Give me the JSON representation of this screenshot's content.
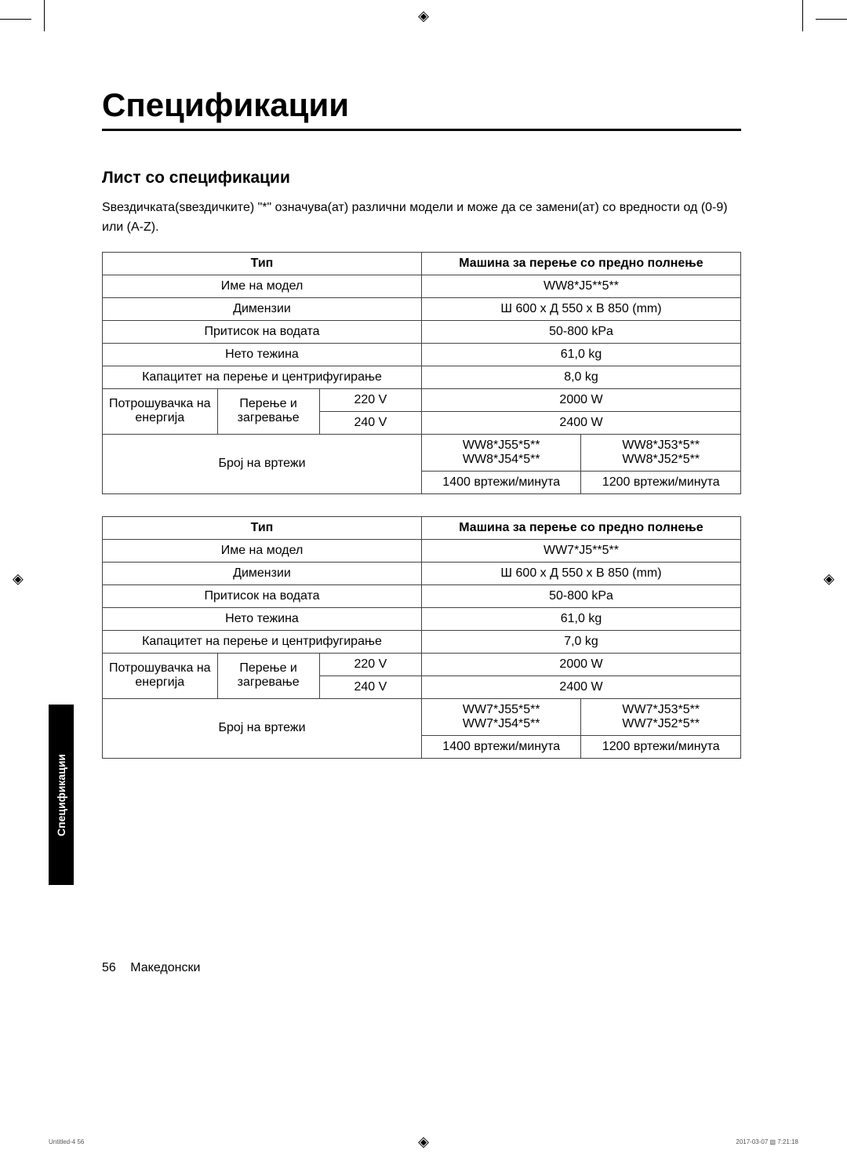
{
  "title": "Спецификации",
  "section_heading": "Лист со спецификации",
  "intro": "Ѕвездичката(ѕвездичките) \"*\" означува(ат) различни модели и може да се замени(ат) со вредности од (0-9) или (А-Z).",
  "labels": {
    "type": "Тип",
    "machine": "Машина за перење со предно полнење",
    "model_name": "Име на модел",
    "dimensions": "Димензии",
    "water_pressure": "Притисок на водата",
    "net_weight": "Нето тежина",
    "capacity": "Капацитет на перење и центрифугирање",
    "power_consumption": "Потрошувачка на енергија",
    "wash_heat": "Перење и загревање",
    "spin": "Број на вртежи"
  },
  "tables": [
    {
      "model": "WW8*J5**5**",
      "dimensions": "Ш 600 x Д 550 x В 850 (mm)",
      "water_pressure": "50-800 kPa",
      "net_weight": "61,0 kg",
      "capacity": "8,0 kg",
      "v1": "220 V",
      "w1": "2000 W",
      "v2": "240 V",
      "w2": "2400 W",
      "spin_models_a": [
        "WW8*J55*5**",
        "WW8*J54*5**"
      ],
      "spin_models_b": [
        "WW8*J53*5**",
        "WW8*J52*5**"
      ],
      "spin_a": "1400 вртежи/минута",
      "spin_b": "1200 вртежи/минута"
    },
    {
      "model": "WW7*J5**5**",
      "dimensions": "Ш 600 x Д 550 x В 850 (mm)",
      "water_pressure": "50-800 kPa",
      "net_weight": "61,0 kg",
      "capacity": "7,0 kg",
      "v1": "220 V",
      "w1": "2000 W",
      "v2": "240 V",
      "w2": "2400 W",
      "spin_models_a": [
        "WW7*J55*5**",
        "WW7*J54*5**"
      ],
      "spin_models_b": [
        "WW7*J53*5**",
        "WW7*J52*5**"
      ],
      "spin_a": "1400 вртежи/минута",
      "spin_b": "1200 вртежи/минута"
    }
  ],
  "side_tab": "Спецификации",
  "footer": {
    "page": "56",
    "lang": "Македонски"
  },
  "tiny": {
    "left": "Untitled-4   56",
    "right": "2017-03-07   ▧ 7:21:18"
  },
  "col_widths": {
    "c1": "18%",
    "c2": "16%",
    "c3": "16%",
    "c4": "25%",
    "c5": "25%"
  }
}
